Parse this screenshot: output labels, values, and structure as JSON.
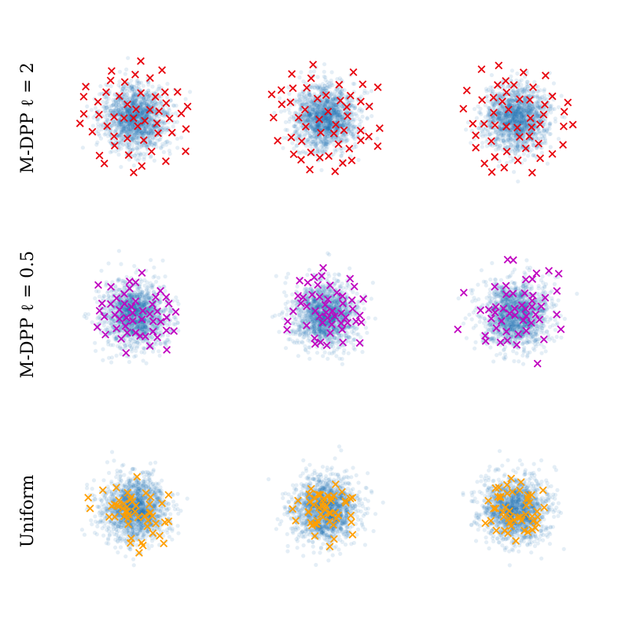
{
  "figure": {
    "rows": [
      {
        "label": "M-DPP ℓ = 2",
        "marker_color": "#e8000b"
      },
      {
        "label": "M-DPP ℓ = 0.5",
        "marker_color": "#c000c0"
      },
      {
        "label": "Uniform",
        "marker_color": "#ff9f00"
      }
    ],
    "background_color": "#1f77b4",
    "background_alpha": 0.12,
    "background_points_per_panel": 1500,
    "samples_per_panel": 50
  },
  "chart_data": {
    "type": "scatter",
    "grid": false,
    "axes_visible": false,
    "xlim": [
      -4.2,
      4.2
    ],
    "ylim": [
      -4.2,
      4.2
    ],
    "layout": "3x3 grid",
    "series": [
      {
        "name": "M-DPP ℓ = 2",
        "color": "#e8000b",
        "marker": "x",
        "panels": 3
      },
      {
        "name": "M-DPP ℓ = 0.5",
        "color": "#c000c0",
        "marker": "x",
        "panels": 3
      },
      {
        "name": "Uniform",
        "color": "#ff9f00",
        "marker": "x",
        "panels": 3
      }
    ],
    "background": {
      "distribution": "standard normal",
      "color": "#1f77b4",
      "points": 1500
    }
  }
}
